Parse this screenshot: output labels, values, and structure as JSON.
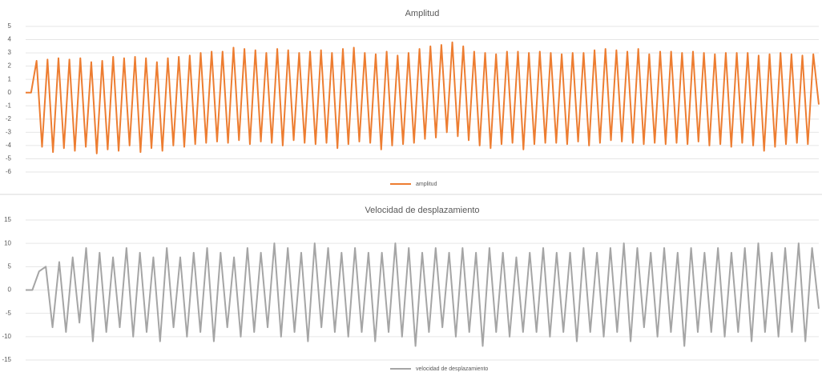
{
  "chart_data": [
    {
      "type": "line",
      "title": "Amplitud",
      "series": [
        {
          "name": "amplitud",
          "color": "#ed7d31",
          "values": [
            0,
            0,
            2.4,
            -4.1,
            2.5,
            -4.5,
            2.6,
            -4.2,
            2.5,
            -4.4,
            2.6,
            -4.1,
            2.3,
            -4.6,
            2.4,
            -4.3,
            2.7,
            -4.4,
            2.6,
            -4.0,
            2.7,
            -4.5,
            2.6,
            -4.2,
            2.3,
            -4.4,
            2.6,
            -4.0,
            2.7,
            -4.1,
            2.8,
            -3.9,
            3.0,
            -3.8,
            3.1,
            -3.7,
            3.1,
            -3.8,
            3.4,
            -3.6,
            3.3,
            -3.9,
            3.2,
            -3.7,
            3.0,
            -3.8,
            3.3,
            -4.0,
            3.2,
            -3.6,
            3.0,
            -3.8,
            3.1,
            -3.9,
            3.2,
            -3.8,
            3.0,
            -4.2,
            3.3,
            -3.9,
            3.4,
            -3.7,
            3.0,
            -3.8,
            2.9,
            -4.3,
            3.1,
            -4.0,
            2.8,
            -3.9,
            3.0,
            -3.8,
            3.3,
            -3.5,
            3.5,
            -3.4,
            3.6,
            -3.0,
            3.8,
            -3.3,
            3.5,
            -3.6,
            3.1,
            -4.0,
            3.0,
            -4.2,
            2.9,
            -3.9,
            3.1,
            -3.8,
            3.1,
            -4.3,
            3.0,
            -3.9,
            3.1,
            -3.8,
            3.0,
            -3.8,
            2.9,
            -3.9,
            3.0,
            -3.7,
            3.0,
            -4.0,
            3.2,
            -3.8,
            3.3,
            -3.6,
            3.2,
            -3.7,
            3.1,
            -3.8,
            3.3,
            -3.9,
            2.9,
            -3.8,
            3.1,
            -3.9,
            3.1,
            -3.8,
            3.0,
            -3.9,
            3.1,
            -3.7,
            3.0,
            -4.0,
            2.9,
            -3.9,
            3.0,
            -4.1,
            3.0,
            -3.8,
            3.0,
            -4.0,
            2.8,
            -4.4,
            2.9,
            -4.1,
            3.0,
            -3.9,
            2.9,
            -3.8,
            2.8,
            -3.9,
            2.9,
            -0.9
          ]
        }
      ],
      "ylim": [
        -6,
        5
      ],
      "yticks": [
        -6,
        -5,
        -4,
        -3,
        -2,
        -1,
        0,
        1,
        2,
        3,
        4,
        5
      ],
      "grid": true
    },
    {
      "type": "line",
      "title": "Velocidad de desplazamiento",
      "series": [
        {
          "name": "velocidad de desplazamiento",
          "color": "#a5a5a5",
          "values": [
            0,
            0,
            4,
            5,
            -8,
            6,
            -9,
            7,
            -7,
            9,
            -11,
            8,
            -9,
            7,
            -8,
            9,
            -10,
            8,
            -9,
            7,
            -11,
            9,
            -8,
            7,
            -10,
            8,
            -9,
            9,
            -11,
            8,
            -8,
            7,
            -10,
            9,
            -9,
            8,
            -8,
            10,
            -10,
            9,
            -9,
            8,
            -11,
            10,
            -8,
            9,
            -9,
            8,
            -10,
            9,
            -9,
            8,
            -11,
            8,
            -9,
            10,
            -10,
            9,
            -12,
            8,
            -9,
            9,
            -8,
            8,
            -10,
            9,
            -9,
            8,
            -12,
            9,
            -9,
            8,
            -10,
            7,
            -9,
            8,
            -9,
            9,
            -10,
            8,
            -9,
            8,
            -11,
            9,
            -9,
            8,
            -10,
            9,
            -9,
            10,
            -11,
            9,
            -8,
            8,
            -10,
            9,
            -9,
            8,
            -12,
            9,
            -9,
            8,
            -9,
            9,
            -10,
            8,
            -9,
            9,
            -11,
            10,
            -9,
            8,
            -10,
            9,
            -9,
            10,
            -11,
            9,
            -4
          ]
        }
      ],
      "ylim": [
        -15,
        15
      ],
      "yticks": [
        -15,
        -10,
        -5,
        0,
        5,
        10,
        15
      ],
      "grid": true
    }
  ]
}
